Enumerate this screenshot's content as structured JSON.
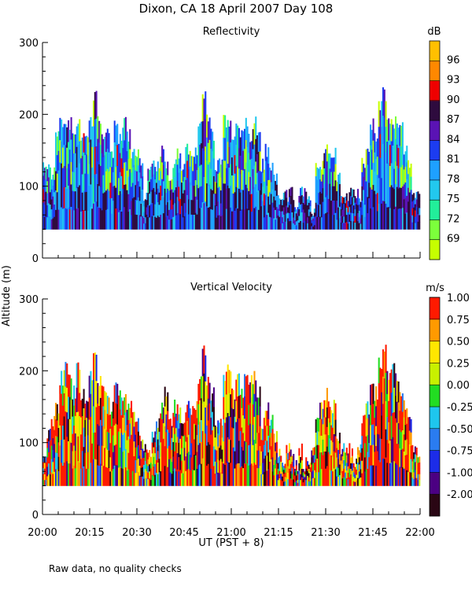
{
  "figure": {
    "title": "Dixon, CA 18 April 2007  Day 108",
    "ylabel": "Altitude (m)",
    "xlabel": "UT  (PST + 8)",
    "footnote": "Raw data, no quality checks"
  },
  "chart_data": [
    {
      "type": "heatmap",
      "title": "Reflectivity",
      "xlabel": "UT  (PST + 8)",
      "ylabel": "Altitude (m)",
      "xlim": [
        "20:00",
        "22:00"
      ],
      "ylim": [
        0,
        300
      ],
      "x_ticks": [
        "20:00",
        "20:15",
        "20:30",
        "20:45",
        "21:00",
        "21:15",
        "21:30",
        "21:45",
        "22:00"
      ],
      "y_ticks": [
        0,
        100,
        200,
        300
      ],
      "colorbar": {
        "unit": "dB",
        "ticks": [
          "69",
          "72",
          "75",
          "78",
          "81",
          "84",
          "87",
          "90",
          "93",
          "96"
        ],
        "colors": [
          "#c6ff00",
          "#7cff3b",
          "#22ee9a",
          "#22c8ee",
          "#1ea0ff",
          "#1c3cf0",
          "#5a13b4",
          "#2e0b3e",
          "#ee0000",
          "#ff8800",
          "#ffc000"
        ]
      },
      "echo_base_altitude_m": 40,
      "echo_top_altitude_m": [
        140,
        140,
        130,
        180,
        200,
        200,
        200,
        180,
        200,
        180,
        180,
        200,
        240,
        200,
        180,
        180,
        160,
        200,
        180,
        200,
        180,
        160,
        160,
        140,
        100,
        140,
        140,
        140,
        160,
        140,
        120,
        140,
        160,
        140,
        160,
        160,
        160,
        200,
        240,
        200,
        180,
        140,
        140,
        200,
        200,
        180,
        200,
        180,
        200,
        180,
        200,
        180,
        140,
        160,
        140,
        120,
        100,
        100,
        100,
        100,
        80,
        100,
        100,
        100,
        80,
        140,
        140,
        160,
        160,
        160,
        120,
        100,
        100,
        100,
        100,
        100,
        140,
        160,
        200,
        180,
        220,
        240,
        200,
        200,
        200,
        200,
        160,
        140,
        100,
        100
      ],
      "dominant_class": [
        "blue (81-84 dB) with dark-purple (87 dB) cores"
      ]
    },
    {
      "type": "heatmap",
      "title": "Vertical Velocity",
      "xlabel": "UT  (PST + 8)",
      "ylabel": "Altitude (m)",
      "xlim": [
        "20:00",
        "22:00"
      ],
      "ylim": [
        0,
        300
      ],
      "x_ticks": [
        "20:00",
        "20:15",
        "20:30",
        "20:45",
        "21:00",
        "21:15",
        "21:30",
        "21:45",
        "22:00"
      ],
      "y_ticks": [
        0,
        100,
        200,
        300
      ],
      "colorbar": {
        "unit": "m/s",
        "ticks": [
          "-2.00",
          "-1.00",
          "-0.75",
          "-0.50",
          "-0.25",
          "0.00",
          "0.25",
          "0.50",
          "0.75",
          "1.00"
        ],
        "colors": [
          "#2a0614",
          "#4b0082",
          "#1c2ce8",
          "#2a7cf0",
          "#1ec6ee",
          "#22dd22",
          "#c8f000",
          "#ffe600",
          "#ff9a00",
          "#ff1a00"
        ]
      },
      "echo_base_altitude_m": 40,
      "echo_top_altitude_m": [
        100,
        120,
        140,
        160,
        200,
        220,
        200,
        180,
        220,
        180,
        160,
        200,
        240,
        200,
        180,
        180,
        160,
        200,
        180,
        180,
        160,
        160,
        140,
        120,
        100,
        100,
        120,
        140,
        160,
        180,
        140,
        160,
        160,
        140,
        160,
        160,
        160,
        200,
        240,
        200,
        180,
        140,
        140,
        200,
        220,
        180,
        200,
        180,
        200,
        200,
        200,
        180,
        140,
        160,
        140,
        120,
        100,
        80,
        100,
        100,
        80,
        100,
        80,
        80,
        100,
        140,
        160,
        180,
        160,
        160,
        120,
        100,
        100,
        100,
        80,
        100,
        140,
        160,
        200,
        180,
        220,
        240,
        200,
        220,
        200,
        180,
        160,
        140,
        100,
        100
      ],
      "dominant_class": [
        "red (>1.00 m/s) updraft columns with mixed green/yellow and dark-purple (-1 to -2 m/s)"
      ]
    }
  ]
}
